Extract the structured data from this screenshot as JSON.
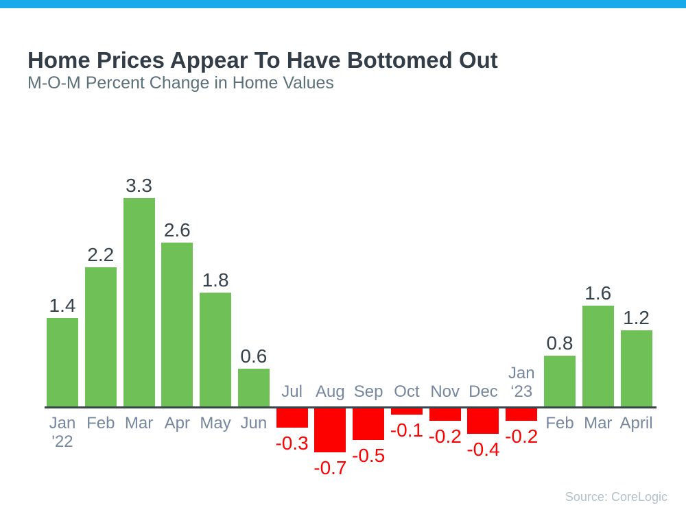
{
  "page": {
    "title": "Home Prices Appear To Have Bottomed Out",
    "subtitle": "M-O-M Percent Change in Home Values",
    "source": "Source: CoreLogic"
  },
  "colors": {
    "accent_strip": "#18abec",
    "positive_bar": "#6fc157",
    "negative_bar": "#fd0000",
    "axis_line": "#3a444c",
    "title_text": "#323d47",
    "subtitle_text": "#5b7078",
    "month_label_text": "#76879d",
    "positive_value_text": "#37424a",
    "negative_value_text": "#fd0000",
    "source_text": "#b2c1ca"
  },
  "chart_data": {
    "type": "bar",
    "title": "Home Prices Appear To Have Bottomed Out",
    "subtitle": "M-O-M Percent Change in Home Values",
    "xlabel": "",
    "ylabel": "M-O-M percent change in home values (%)",
    "ylim": [
      -0.7,
      3.3
    ],
    "grid": false,
    "legend": false,
    "baseline": 0,
    "source": "Source: CoreLogic",
    "categories": [
      "Jan '22",
      "Feb",
      "Mar",
      "Apr",
      "May",
      "Jun",
      "Jul",
      "Aug",
      "Sep",
      "Oct",
      "Nov",
      "Dec",
      "Jan ‘23",
      "Feb",
      "Mar",
      "April"
    ],
    "category_label_lines": [
      [
        "Jan",
        "'22"
      ],
      [
        "Feb"
      ],
      [
        "Mar"
      ],
      [
        "Apr"
      ],
      [
        "May"
      ],
      [
        "Jun"
      ],
      [
        "Jul"
      ],
      [
        "Aug"
      ],
      [
        "Sep"
      ],
      [
        "Oct"
      ],
      [
        "Nov"
      ],
      [
        "Dec"
      ],
      [
        "Jan",
        "‘23"
      ],
      [
        "Feb"
      ],
      [
        "Mar"
      ],
      [
        "April"
      ]
    ],
    "values": [
      1.4,
      2.2,
      3.3,
      2.6,
      1.8,
      0.6,
      -0.3,
      -0.7,
      -0.5,
      -0.1,
      -0.2,
      -0.4,
      -0.2,
      0.8,
      1.6,
      1.2
    ],
    "data_labels": [
      "1.4",
      "2.2",
      "3.3",
      "2.6",
      "1.8",
      "0.6",
      "-0.3",
      "-0.7",
      "-0.5",
      "-0.1",
      "-0.2",
      "-0.4",
      "-0.2",
      "0.8",
      "1.6",
      "1.2"
    ]
  }
}
